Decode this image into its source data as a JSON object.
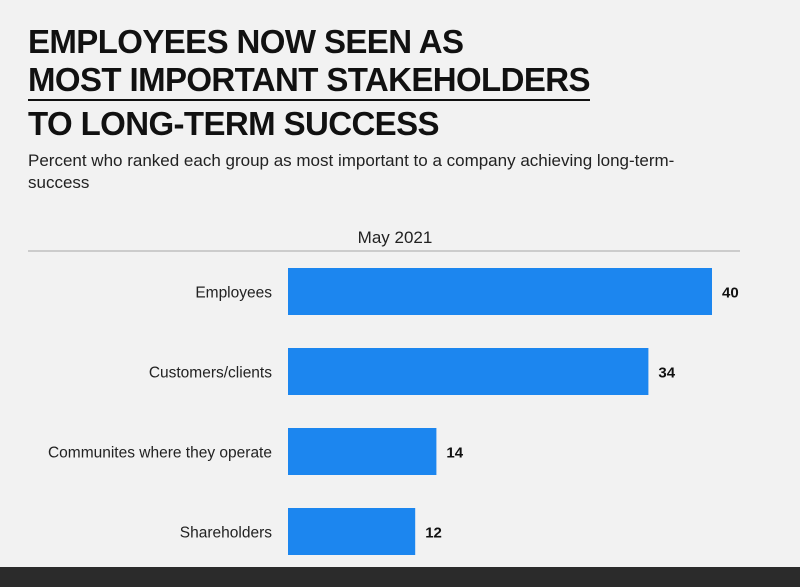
{
  "title_lines": [
    "EMPLOYEES NOW SEEN AS",
    "MOST IMPORTANT STAKEHOLDERS",
    "TO LONG-TERM SUCCESS"
  ],
  "subtitle": "Percent who ranked each group as most important to a company achieving long-term-success",
  "colors": {
    "bar": "#1c86ef",
    "background": "#f2f2f2",
    "text": "#111111"
  },
  "chart_data": {
    "type": "bar",
    "orientation": "horizontal",
    "series_header": "May 2021",
    "categories": [
      "Employees",
      "Customers/clients",
      "Communites where they operate",
      "Shareholders"
    ],
    "values": [
      40,
      34,
      14,
      12
    ],
    "xlim": [
      0,
      40
    ],
    "grid": false,
    "legend": "none"
  }
}
